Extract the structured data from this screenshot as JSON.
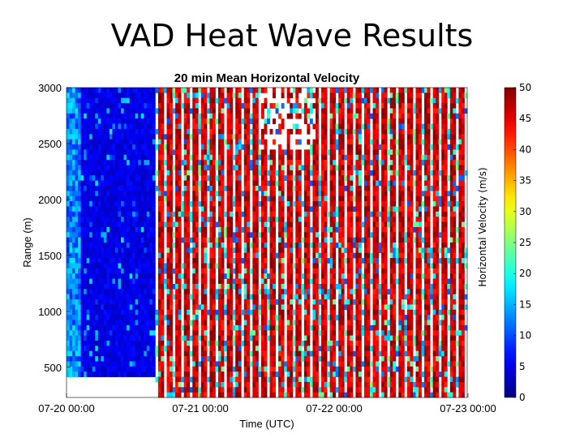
{
  "slide": {
    "title": "VAD Heat Wave Results"
  },
  "chart_data": {
    "type": "heatmap",
    "title": "20 min Mean Horizontal Velocity",
    "xlabel": "Time (UTC)",
    "ylabel": "Range (m)",
    "x_ticks": [
      "07-20 00:00",
      "07-21 00:00",
      "07-22 00:00",
      "07-23 00:00"
    ],
    "x_range": [
      "07-20 00:00",
      "07-23 00:00"
    ],
    "y_ticks": [
      500,
      1000,
      1500,
      2000,
      2500,
      3000
    ],
    "ylim": [
      230,
      3000
    ],
    "colorbar": {
      "label": "Horizontal Velocity (m/s)",
      "ticks": [
        0,
        5,
        10,
        15,
        20,
        25,
        30,
        35,
        40,
        45,
        50
      ],
      "range": [
        0,
        50
      ],
      "colormap": "jet"
    },
    "grid": false,
    "description_colors": {
      "low": "#00008f",
      "mid": "#7fff7f",
      "high": "#7f0000"
    }
  }
}
